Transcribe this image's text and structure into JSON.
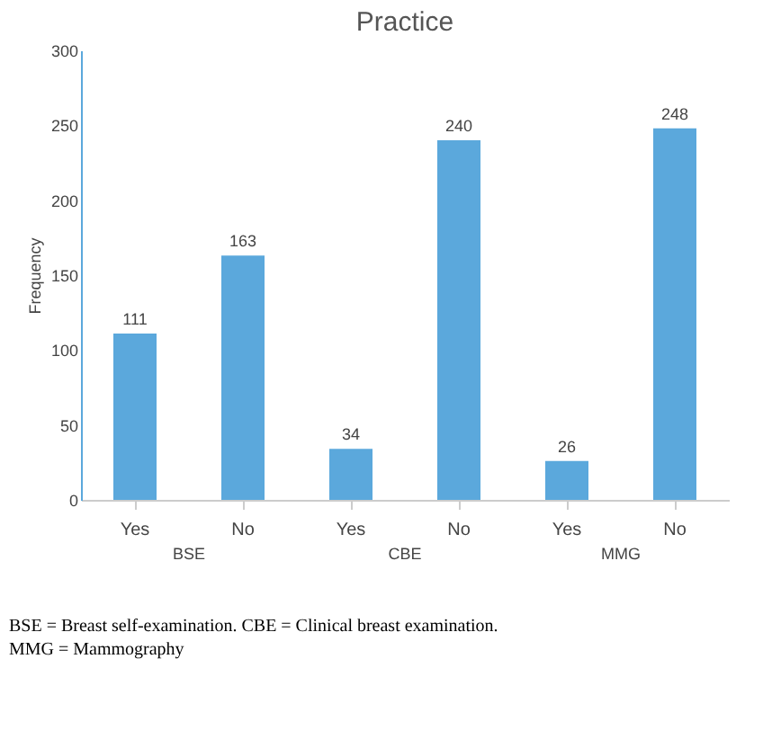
{
  "chart_data": {
    "type": "bar",
    "title": "Practice",
    "ylabel": "Frequency",
    "categories": [
      "Yes",
      "No",
      "Yes",
      "No",
      "Yes",
      "No"
    ],
    "values": [
      111,
      163,
      34,
      240,
      26,
      248
    ],
    "color": "#5ba8dc",
    "ylim": [
      0,
      300
    ],
    "yticks": [
      0,
      50,
      100,
      150,
      200,
      250,
      300
    ],
    "grid": false,
    "data_labels": true,
    "annotations": [
      "BSE",
      "CBE",
      "MMG",
      "BSE = Breast self-examination. CBE = Clinical breast examination.",
      "MMG = Mammography"
    ]
  }
}
